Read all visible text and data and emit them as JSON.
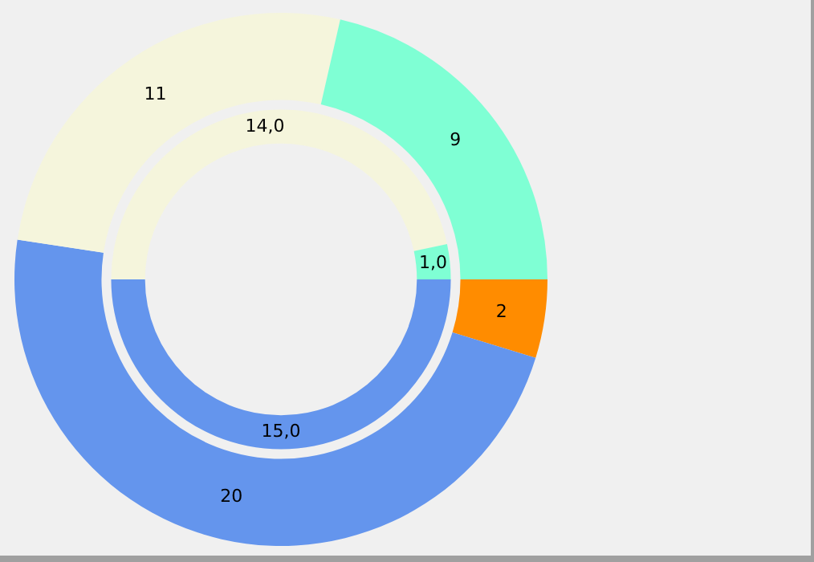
{
  "chart_data": {
    "type": "donut",
    "categories": [
      null,
      null,
      null,
      null
    ],
    "series": [
      {
        "values": [
          2,
          20,
          11,
          9
        ],
        "colors": [
          "#ff8c00",
          "#6495ed",
          "#f5f5dc",
          "#7fffd4"
        ],
        "value_labels": [
          "2",
          "20",
          "11",
          "9"
        ]
      },
      {
        "values": [
          null,
          15,
          14,
          1
        ],
        "colors": [
          "#ff8c00",
          "#6495ed",
          "#f5f5dc",
          "#7fffd4"
        ],
        "value_labels": [
          null,
          "15,0",
          "14,0",
          "1,0"
        ]
      }
    ],
    "legend": false
  }
}
